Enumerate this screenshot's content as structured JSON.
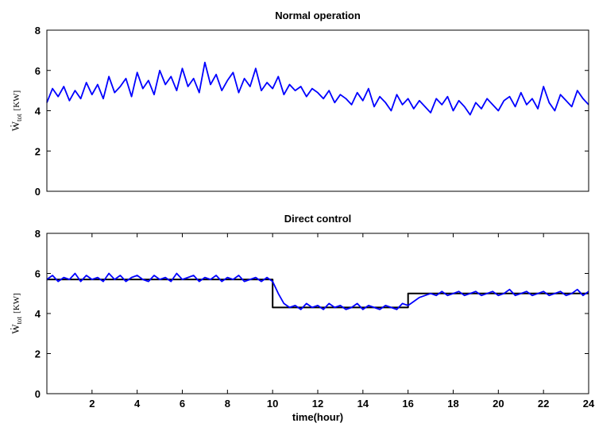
{
  "chart_data": [
    {
      "type": "line",
      "title": "Normal operation",
      "xlabel": "",
      "ylabel": {
        "main": "Ẇ",
        "sub": "tot",
        "unit": "[KW]"
      },
      "xlim": [
        0,
        24
      ],
      "ylim": [
        0,
        8
      ],
      "xticks": [],
      "yticks": [
        0,
        2,
        4,
        6,
        8
      ],
      "grid": false,
      "series": [
        {
          "color": "#0000ff",
          "x": [
            0,
            0.25,
            0.5,
            0.75,
            1,
            1.25,
            1.5,
            1.75,
            2,
            2.25,
            2.5,
            2.75,
            3,
            3.25,
            3.5,
            3.75,
            4,
            4.25,
            4.5,
            4.75,
            5,
            5.25,
            5.5,
            5.75,
            6,
            6.25,
            6.5,
            6.75,
            7,
            7.25,
            7.5,
            7.75,
            8,
            8.25,
            8.5,
            8.75,
            9,
            9.25,
            9.5,
            9.75,
            10,
            10.25,
            10.5,
            10.75,
            11,
            11.25,
            11.5,
            11.75,
            12,
            12.25,
            12.5,
            12.75,
            13,
            13.25,
            13.5,
            13.75,
            14,
            14.25,
            14.5,
            14.75,
            15,
            15.25,
            15.5,
            15.75,
            16,
            16.25,
            16.5,
            16.75,
            17,
            17.25,
            17.5,
            17.75,
            18,
            18.25,
            18.5,
            18.75,
            19,
            19.25,
            19.5,
            19.75,
            20,
            20.25,
            20.5,
            20.75,
            21,
            21.25,
            21.5,
            21.75,
            22,
            22.25,
            22.5,
            22.75,
            23,
            23.25,
            23.5,
            23.75,
            24
          ],
          "y": [
            4.4,
            5.1,
            4.7,
            5.2,
            4.5,
            5.0,
            4.6,
            5.4,
            4.8,
            5.3,
            4.6,
            5.7,
            4.9,
            5.2,
            5.6,
            4.7,
            5.9,
            5.1,
            5.5,
            4.8,
            6.0,
            5.3,
            5.7,
            5.0,
            6.1,
            5.2,
            5.6,
            4.9,
            6.4,
            5.3,
            5.8,
            5.0,
            5.5,
            5.9,
            4.9,
            5.6,
            5.2,
            6.1,
            5.0,
            5.4,
            5.1,
            5.7,
            4.8,
            5.3,
            5.0,
            5.2,
            4.7,
            5.1,
            4.9,
            4.6,
            5.0,
            4.4,
            4.8,
            4.6,
            4.3,
            4.9,
            4.5,
            5.1,
            4.2,
            4.7,
            4.4,
            4.0,
            4.8,
            4.3,
            4.6,
            4.1,
            4.5,
            4.2,
            3.9,
            4.6,
            4.3,
            4.7,
            4.0,
            4.5,
            4.2,
            3.8,
            4.4,
            4.1,
            4.6,
            4.3,
            4.0,
            4.5,
            4.7,
            4.2,
            4.9,
            4.3,
            4.6,
            4.1,
            5.2,
            4.4,
            4.0,
            4.8,
            4.5,
            4.2,
            5.0,
            4.6,
            4.3
          ]
        }
      ]
    },
    {
      "type": "line",
      "title": "Direct control",
      "xlabel": "time(hour)",
      "ylabel": {
        "main": "Ẇ",
        "sub": "tot",
        "unit": "[KW]"
      },
      "xlim": [
        0,
        24
      ],
      "ylim": [
        0,
        8
      ],
      "xticks": [
        2,
        4,
        6,
        8,
        10,
        12,
        14,
        16,
        18,
        20,
        22,
        24
      ],
      "yticks": [
        0,
        2,
        4,
        6,
        8
      ],
      "grid": false,
      "series": [
        {
          "color": "#000000",
          "x": [
            0,
            10,
            10,
            10.75,
            10.75,
            16,
            16,
            24
          ],
          "y": [
            5.7,
            5.7,
            4.3,
            4.3,
            4.3,
            4.3,
            5.0,
            5.0
          ]
        },
        {
          "color": "#0000ff",
          "x": [
            0,
            0.25,
            0.5,
            0.75,
            1,
            1.25,
            1.5,
            1.75,
            2,
            2.25,
            2.5,
            2.75,
            3,
            3.25,
            3.5,
            3.75,
            4,
            4.25,
            4.5,
            4.75,
            5,
            5.25,
            5.5,
            5.75,
            6,
            6.25,
            6.5,
            6.75,
            7,
            7.25,
            7.5,
            7.75,
            8,
            8.25,
            8.5,
            8.75,
            9,
            9.25,
            9.5,
            9.75,
            10,
            10.25,
            10.5,
            10.75,
            11,
            11.25,
            11.5,
            11.75,
            12,
            12.25,
            12.5,
            12.75,
            13,
            13.25,
            13.5,
            13.75,
            14,
            14.25,
            14.5,
            14.75,
            15,
            15.25,
            15.5,
            15.75,
            16,
            16.25,
            16.5,
            16.75,
            17,
            17.25,
            17.5,
            17.75,
            18,
            18.25,
            18.5,
            18.75,
            19,
            19.25,
            19.5,
            19.75,
            20,
            20.25,
            20.5,
            20.75,
            21,
            21.25,
            21.5,
            21.75,
            22,
            22.25,
            22.5,
            22.75,
            23,
            23.25,
            23.5,
            23.75,
            24
          ],
          "y": [
            5.7,
            5.9,
            5.6,
            5.8,
            5.7,
            6.0,
            5.6,
            5.9,
            5.7,
            5.8,
            5.6,
            6.0,
            5.7,
            5.9,
            5.6,
            5.8,
            5.9,
            5.7,
            5.6,
            5.9,
            5.7,
            5.8,
            5.6,
            6.0,
            5.7,
            5.8,
            5.9,
            5.6,
            5.8,
            5.7,
            5.9,
            5.6,
            5.8,
            5.7,
            5.9,
            5.6,
            5.7,
            5.8,
            5.6,
            5.8,
            5.6,
            5.0,
            4.5,
            4.3,
            4.4,
            4.2,
            4.5,
            4.3,
            4.4,
            4.2,
            4.5,
            4.3,
            4.4,
            4.2,
            4.3,
            4.5,
            4.2,
            4.4,
            4.3,
            4.2,
            4.4,
            4.3,
            4.2,
            4.5,
            4.4,
            4.6,
            4.8,
            4.9,
            5.0,
            4.9,
            5.1,
            4.9,
            5.0,
            5.1,
            4.9,
            5.0,
            5.1,
            4.9,
            5.0,
            5.1,
            4.9,
            5.0,
            5.2,
            4.9,
            5.0,
            5.1,
            4.9,
            5.0,
            5.1,
            4.9,
            5.0,
            5.1,
            4.9,
            5.0,
            5.2,
            4.9,
            5.1
          ]
        }
      ]
    }
  ]
}
